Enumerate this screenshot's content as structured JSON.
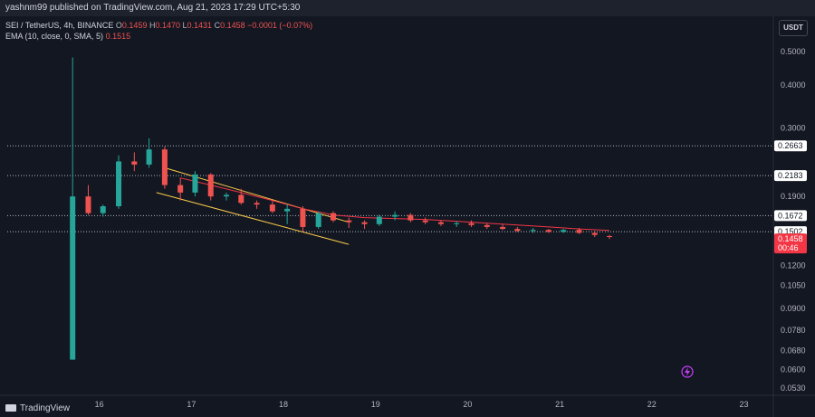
{
  "header": {
    "published_text": "yashnm99 published on TradingView.com, Aug 21, 2023 17:29 UTC+5:30"
  },
  "legend": {
    "symbol": "SEI / TetherUS, 4h, BINANCE",
    "o_label": "O",
    "o_value": "0.1459",
    "h_label": "H",
    "h_value": "0.1470",
    "l_label": "L",
    "l_value": "0.1431",
    "c_label": "C",
    "c_value": "0.1458",
    "change": "−0.0001 (−0.07%)",
    "ema_label": "EMA (10, close, 0, SMA, 5)",
    "ema_value": "0.1515"
  },
  "quote_currency": "USDT",
  "footer": {
    "brand": "TradingView"
  },
  "colors": {
    "background": "#131722",
    "up": "#26a69a",
    "down": "#ef5350",
    "ema": "#f23645",
    "channel": "#f7c948",
    "level": "#b2b5be",
    "price_label_bg": "#f23645"
  },
  "chart_data": {
    "type": "candlestick",
    "yscale": "log",
    "ylim": [
      0.052,
      0.56
    ],
    "y_ticks": [
      "0.5000",
      "0.4000",
      "0.3000",
      "0.1900",
      "0.1200",
      "0.1050",
      "0.0900",
      "0.0780",
      "0.0680",
      "0.0600",
      "0.0530"
    ],
    "x_ticks": [
      {
        "label": "16",
        "day": 16
      },
      {
        "label": "17",
        "day": 17
      },
      {
        "label": "18",
        "day": 18
      },
      {
        "label": "19",
        "day": 19
      },
      {
        "label": "20",
        "day": 20
      },
      {
        "label": "21",
        "day": 21
      },
      {
        "label": "22",
        "day": 22
      },
      {
        "label": "23",
        "day": 23
      }
    ],
    "xlim_days": [
      15.0,
      23.3
    ],
    "candles": [
      {
        "d": 15.71,
        "o": 0.064,
        "h": 0.48,
        "l": 0.064,
        "c": 0.19
      },
      {
        "d": 15.88,
        "o": 0.19,
        "h": 0.205,
        "l": 0.168,
        "c": 0.17
      },
      {
        "d": 16.04,
        "o": 0.17,
        "h": 0.18,
        "l": 0.166,
        "c": 0.178
      },
      {
        "d": 16.21,
        "o": 0.178,
        "h": 0.25,
        "l": 0.175,
        "c": 0.24
      },
      {
        "d": 16.38,
        "o": 0.24,
        "h": 0.255,
        "l": 0.225,
        "c": 0.235
      },
      {
        "d": 16.54,
        "o": 0.235,
        "h": 0.28,
        "l": 0.23,
        "c": 0.26
      },
      {
        "d": 16.71,
        "o": 0.26,
        "h": 0.265,
        "l": 0.2,
        "c": 0.205
      },
      {
        "d": 16.88,
        "o": 0.205,
        "h": 0.215,
        "l": 0.185,
        "c": 0.195
      },
      {
        "d": 17.04,
        "o": 0.195,
        "h": 0.225,
        "l": 0.19,
        "c": 0.22
      },
      {
        "d": 17.21,
        "o": 0.22,
        "h": 0.222,
        "l": 0.185,
        "c": 0.19
      },
      {
        "d": 17.38,
        "o": 0.19,
        "h": 0.195,
        "l": 0.185,
        "c": 0.192
      },
      {
        "d": 17.54,
        "o": 0.192,
        "h": 0.2,
        "l": 0.18,
        "c": 0.182
      },
      {
        "d": 17.71,
        "o": 0.182,
        "h": 0.185,
        "l": 0.175,
        "c": 0.18
      },
      {
        "d": 17.88,
        "o": 0.18,
        "h": 0.185,
        "l": 0.17,
        "c": 0.172
      },
      {
        "d": 18.04,
        "o": 0.172,
        "h": 0.18,
        "l": 0.158,
        "c": 0.175
      },
      {
        "d": 18.21,
        "o": 0.175,
        "h": 0.178,
        "l": 0.15,
        "c": 0.155
      },
      {
        "d": 18.38,
        "o": 0.155,
        "h": 0.172,
        "l": 0.153,
        "c": 0.17
      },
      {
        "d": 18.54,
        "o": 0.17,
        "h": 0.172,
        "l": 0.16,
        "c": 0.162
      },
      {
        "d": 18.71,
        "o": 0.162,
        "h": 0.165,
        "l": 0.154,
        "c": 0.16
      },
      {
        "d": 18.88,
        "o": 0.16,
        "h": 0.162,
        "l": 0.153,
        "c": 0.158
      },
      {
        "d": 19.04,
        "o": 0.158,
        "h": 0.168,
        "l": 0.156,
        "c": 0.166
      },
      {
        "d": 19.21,
        "o": 0.166,
        "h": 0.172,
        "l": 0.162,
        "c": 0.168
      },
      {
        "d": 19.38,
        "o": 0.168,
        "h": 0.17,
        "l": 0.16,
        "c": 0.162
      },
      {
        "d": 19.54,
        "o": 0.162,
        "h": 0.165,
        "l": 0.158,
        "c": 0.16
      },
      {
        "d": 19.71,
        "o": 0.16,
        "h": 0.162,
        "l": 0.156,
        "c": 0.158
      },
      {
        "d": 19.88,
        "o": 0.158,
        "h": 0.161,
        "l": 0.155,
        "c": 0.159
      },
      {
        "d": 20.04,
        "o": 0.159,
        "h": 0.162,
        "l": 0.155,
        "c": 0.157
      },
      {
        "d": 20.21,
        "o": 0.157,
        "h": 0.159,
        "l": 0.153,
        "c": 0.155
      },
      {
        "d": 20.38,
        "o": 0.155,
        "h": 0.158,
        "l": 0.152,
        "c": 0.153
      },
      {
        "d": 20.54,
        "o": 0.153,
        "h": 0.155,
        "l": 0.15,
        "c": 0.151
      },
      {
        "d": 20.71,
        "o": 0.151,
        "h": 0.154,
        "l": 0.149,
        "c": 0.152
      },
      {
        "d": 20.88,
        "o": 0.152,
        "h": 0.153,
        "l": 0.149,
        "c": 0.15
      },
      {
        "d": 21.04,
        "o": 0.15,
        "h": 0.153,
        "l": 0.149,
        "c": 0.152
      },
      {
        "d": 21.21,
        "o": 0.152,
        "h": 0.154,
        "l": 0.148,
        "c": 0.149
      },
      {
        "d": 21.38,
        "o": 0.149,
        "h": 0.151,
        "l": 0.145,
        "c": 0.147
      },
      {
        "d": 21.54,
        "o": 0.1459,
        "h": 0.147,
        "l": 0.1431,
        "c": 0.1458
      }
    ],
    "ema": [
      [
        16.88,
        0.215
      ],
      [
        17.21,
        0.205
      ],
      [
        17.54,
        0.195
      ],
      [
        17.88,
        0.185
      ],
      [
        18.21,
        0.175
      ],
      [
        18.54,
        0.168
      ],
      [
        18.88,
        0.165
      ],
      [
        19.21,
        0.164
      ],
      [
        19.54,
        0.163
      ],
      [
        19.88,
        0.161
      ],
      [
        20.21,
        0.159
      ],
      [
        20.54,
        0.157
      ],
      [
        20.88,
        0.155
      ],
      [
        21.21,
        0.153
      ],
      [
        21.54,
        0.1515
      ]
    ],
    "channel_lines": [
      {
        "from": [
          16.71,
          0.23
        ],
        "to": [
          18.71,
          0.16
        ]
      },
      {
        "from": [
          16.62,
          0.195
        ],
        "to": [
          18.71,
          0.138
        ]
      }
    ],
    "levels": [
      {
        "price": 0.2663,
        "label": "0.2663"
      },
      {
        "price": 0.2183,
        "label": "0.2183"
      },
      {
        "price": 0.1672,
        "label": "0.1672"
      },
      {
        "price": 0.1502,
        "label": "0.1502"
      }
    ],
    "last_price": {
      "label": "0.1458",
      "price": 0.1458,
      "countdown": "00:46"
    }
  }
}
